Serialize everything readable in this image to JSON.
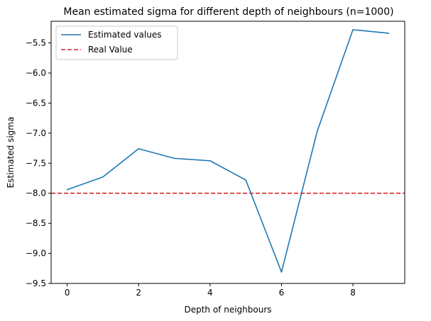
{
  "chart_data": {
    "type": "line",
    "title": "Mean estimated sigma for different depth of neighbours (n=1000)",
    "xlabel": "Depth of neighbours",
    "ylabel": "Estimated sigma",
    "xlim": [
      -0.45,
      9.45
    ],
    "ylim": [
      -9.5,
      -5.14
    ],
    "x_ticks": [
      0,
      2,
      4,
      6,
      8
    ],
    "y_ticks": [
      -9.5,
      -9.0,
      -8.5,
      -8.0,
      -7.5,
      -7.0,
      -6.5,
      -6.0,
      -5.5
    ],
    "x_tick_labels": [
      "0",
      "2",
      "4",
      "6",
      "8"
    ],
    "y_tick_labels": [
      "−9.5",
      "−9.0",
      "−8.5",
      "−8.0",
      "−7.5",
      "−7.0",
      "−6.5",
      "−6.0",
      "−5.5"
    ],
    "grid": false,
    "legend_position": "top-left",
    "series": [
      {
        "name": "Estimated values",
        "color": "#1f77b4",
        "style": "solid",
        "x": [
          0,
          1,
          2,
          3,
          4,
          5,
          6,
          7,
          8,
          9
        ],
        "values": [
          -7.94,
          -7.73,
          -7.26,
          -7.42,
          -7.46,
          -7.78,
          -9.31,
          -6.97,
          -5.28,
          -5.34
        ]
      }
    ],
    "reference_lines": [
      {
        "name": "Real Value",
        "color": "#d62728",
        "style": "dashed",
        "y": -8.0
      }
    ]
  }
}
